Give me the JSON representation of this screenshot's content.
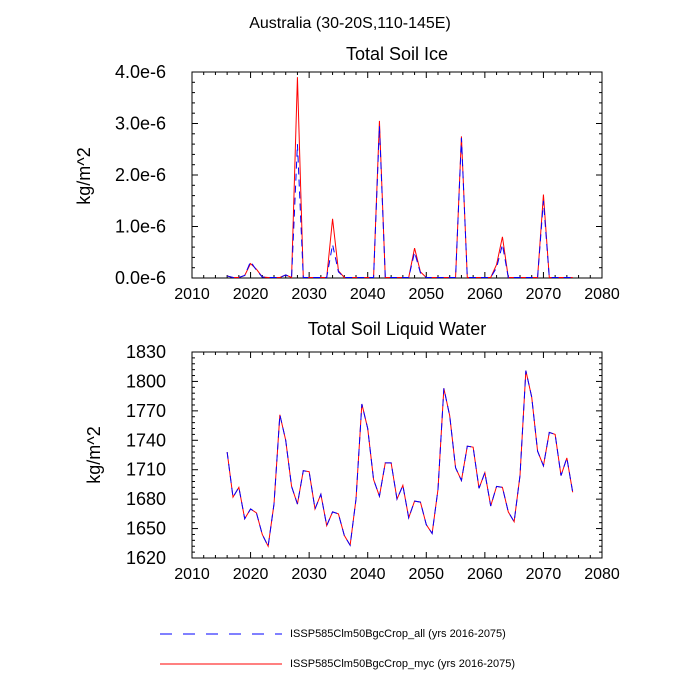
{
  "figure": {
    "suptitle": "Australia (30-20S,110-145E)"
  },
  "chart_data": [
    {
      "type": "line",
      "title": "Total Soil Ice",
      "xlabel": "",
      "ylabel": "kg/m^2",
      "xlim": [
        2010,
        2080
      ],
      "ylim": [
        0,
        4e-06
      ],
      "x_ticks": [
        2010,
        2020,
        2030,
        2040,
        2050,
        2060,
        2070,
        2080
      ],
      "y_ticks": [
        0,
        1e-06,
        2e-06,
        3e-06,
        4e-06
      ],
      "y_tick_labels": [
        "0.0e-6",
        "1.0e-6",
        "2.0e-6",
        "3.0e-6",
        "4.0e-6"
      ],
      "x": [
        2016,
        2017,
        2018,
        2019,
        2020,
        2021,
        2022,
        2023,
        2024,
        2025,
        2026,
        2027,
        2028,
        2029,
        2030,
        2031,
        2032,
        2033,
        2034,
        2035,
        2036,
        2037,
        2038,
        2039,
        2040,
        2041,
        2042,
        2043,
        2044,
        2045,
        2046,
        2047,
        2048,
        2049,
        2050,
        2051,
        2052,
        2053,
        2054,
        2055,
        2056,
        2057,
        2058,
        2059,
        2060,
        2061,
        2062,
        2063,
        2064,
        2065,
        2066,
        2067,
        2068,
        2069,
        2070,
        2071,
        2072,
        2073,
        2074,
        2075
      ],
      "series": [
        {
          "name": "ISSP585Clm50BgcCrop_all (yrs 2016-2075)",
          "color": "#0000ff",
          "dash": "dashed",
          "values": [
            4e-08,
            1e-08,
            1e-08,
            5e-08,
            3.2e-07,
            1.5e-07,
            2e-08,
            1e-08,
            1e-08,
            1e-08,
            6e-08,
            1e-08,
            2.6e-06,
            1e-08,
            1e-08,
            1e-08,
            1e-08,
            1e-08,
            6.5e-07,
            1.2e-07,
            1e-08,
            1e-08,
            1e-08,
            1e-08,
            1e-08,
            1e-08,
            2.95e-06,
            1e-08,
            1e-08,
            1e-08,
            1e-08,
            1e-08,
            5e-07,
            1e-07,
            1e-08,
            1e-08,
            1e-08,
            1e-08,
            1e-08,
            1e-08,
            2.72e-06,
            1e-08,
            1e-08,
            1e-08,
            1e-08,
            1e-08,
            2e-07,
            6.5e-07,
            1e-08,
            1e-08,
            1e-08,
            1e-08,
            1e-08,
            1e-08,
            1.5e-06,
            1e-08,
            1e-08,
            1e-08,
            1e-08,
            1e-08
          ]
        },
        {
          "name": "ISSP585Clm50BgcCrop_myc (yrs 2016-2075)",
          "color": "#ff0000",
          "dash": "solid",
          "values": [
            4e-08,
            1e-08,
            1e-08,
            5e-08,
            2.8e-07,
            1.7e-07,
            2e-08,
            1e-08,
            1e-08,
            1e-08,
            6e-08,
            1e-08,
            3.9e-06,
            1e-08,
            1e-08,
            1e-08,
            1e-08,
            1e-08,
            1.15e-06,
            1.4e-07,
            1e-08,
            1e-08,
            1e-08,
            1e-08,
            1e-08,
            1e-08,
            3.05e-06,
            1e-08,
            1e-08,
            1e-08,
            1e-08,
            1e-08,
            5.8e-07,
            1.2e-07,
            1e-08,
            1e-08,
            1e-08,
            1e-08,
            1e-08,
            1e-08,
            2.75e-06,
            1e-08,
            1e-08,
            1e-08,
            1e-08,
            1e-08,
            2.6e-07,
            8e-07,
            1e-08,
            1e-08,
            1e-08,
            1e-08,
            1e-08,
            1e-08,
            1.62e-06,
            1e-08,
            1e-08,
            1e-08,
            1e-08,
            1e-08
          ]
        }
      ]
    },
    {
      "type": "line",
      "title": "Total Soil Liquid Water",
      "xlabel": "",
      "ylabel": "kg/m^2",
      "xlim": [
        2010,
        2080
      ],
      "ylim": [
        1620,
        1830
      ],
      "x_ticks": [
        2010,
        2020,
        2030,
        2040,
        2050,
        2060,
        2070,
        2080
      ],
      "y_ticks": [
        1620,
        1650,
        1680,
        1710,
        1740,
        1770,
        1800,
        1830
      ],
      "y_tick_labels": [
        "1620",
        "1650",
        "1680",
        "1710",
        "1740",
        "1770",
        "1800",
        "1830"
      ],
      "x": [
        2016,
        2017,
        2018,
        2019,
        2020,
        2021,
        2022,
        2023,
        2024,
        2025,
        2026,
        2027,
        2028,
        2029,
        2030,
        2031,
        2032,
        2033,
        2034,
        2035,
        2036,
        2037,
        2038,
        2039,
        2040,
        2041,
        2042,
        2043,
        2044,
        2045,
        2046,
        2047,
        2048,
        2049,
        2050,
        2051,
        2052,
        2053,
        2054,
        2055,
        2056,
        2057,
        2058,
        2059,
        2060,
        2061,
        2062,
        2063,
        2064,
        2065,
        2066,
        2067,
        2068,
        2069,
        2070,
        2071,
        2072,
        2073,
        2074,
        2075
      ],
      "series": [
        {
          "name": "ISSP585Clm50BgcCrop_all (yrs 2016-2075)",
          "color": "#0000ff",
          "dash": "dashed",
          "values": [
            1728,
            1682,
            1692,
            1660,
            1670,
            1666,
            1644,
            1632,
            1675,
            1766,
            1740,
            1693,
            1675,
            1709,
            1708,
            1670,
            1685,
            1653,
            1667,
            1665,
            1643,
            1633,
            1680,
            1777,
            1752,
            1700,
            1683,
            1717,
            1717,
            1680,
            1694,
            1661,
            1678,
            1677,
            1654,
            1645,
            1690,
            1793,
            1765,
            1712,
            1699,
            1734,
            1733,
            1691,
            1707,
            1673,
            1693,
            1692,
            1667,
            1657,
            1704,
            1811,
            1784,
            1729,
            1714,
            1748,
            1746,
            1704,
            1722,
            1687
          ]
        },
        {
          "name": "ISSP585Clm50BgcCrop_myc (yrs 2016-2075)",
          "color": "#ff0000",
          "dash": "solid",
          "values": [
            1728,
            1682,
            1692,
            1660,
            1670,
            1666,
            1644,
            1632,
            1675,
            1766,
            1740,
            1693,
            1675,
            1709,
            1708,
            1670,
            1685,
            1653,
            1667,
            1665,
            1643,
            1633,
            1680,
            1777,
            1752,
            1700,
            1683,
            1717,
            1717,
            1680,
            1694,
            1661,
            1678,
            1677,
            1654,
            1645,
            1690,
            1793,
            1765,
            1712,
            1699,
            1734,
            1733,
            1691,
            1707,
            1673,
            1693,
            1692,
            1667,
            1657,
            1704,
            1811,
            1784,
            1729,
            1714,
            1748,
            1746,
            1704,
            1722,
            1687
          ]
        }
      ]
    }
  ],
  "legend": {
    "placement": "bottom",
    "entries": [
      {
        "label": "ISSP585Clm50BgcCrop_all (yrs 2016-2075)",
        "color": "#0000ff",
        "dash": "dashed"
      },
      {
        "label": "ISSP585Clm50BgcCrop_myc (yrs 2016-2075)",
        "color": "#ff0000",
        "dash": "solid"
      }
    ]
  }
}
